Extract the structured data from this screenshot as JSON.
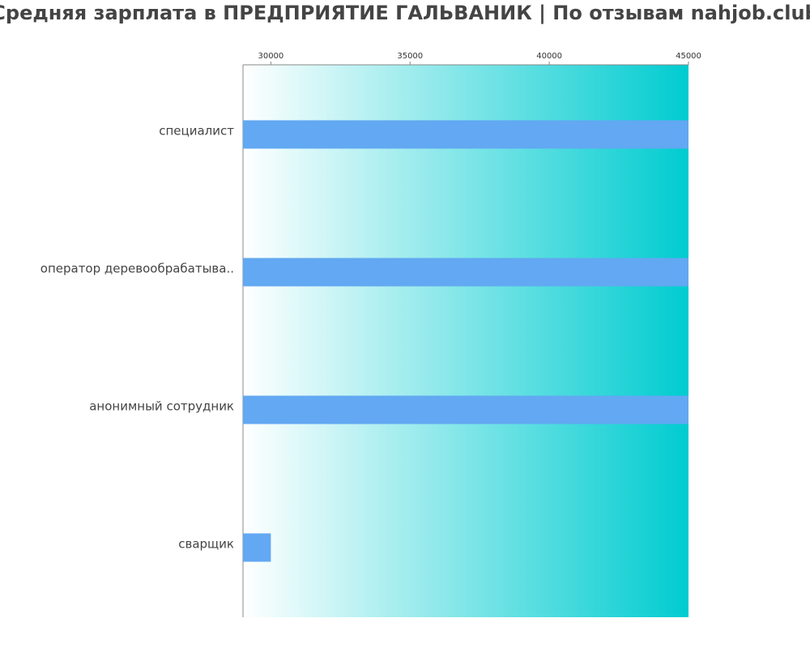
{
  "chart_data": {
    "type": "bar",
    "orientation": "horizontal",
    "title": "Средняя зарплата в ПРЕДПРИЯТИЕ ГАЛЬВАНИК | По отзывам nahjob.club",
    "xlabel": "",
    "ylabel": "",
    "xlim": [
      29000,
      45000
    ],
    "x_ticks": [
      "30000",
      "35000",
      "40000",
      "45000"
    ],
    "x_tick_values": [
      30000,
      35000,
      40000,
      45000
    ],
    "x_axis_position": "top",
    "grid": false,
    "legend": "none",
    "categories": [
      "специалист",
      "оператор деревообрабатыва..",
      "анонимный сотрудник",
      "сварщик"
    ],
    "values": [
      45000,
      45000,
      45000,
      30000
    ]
  },
  "colors": {
    "bar": "#62a8f2",
    "background_gradient_start": "#ffffff",
    "background_gradient_end": "#00ccd0",
    "axis": "#888888",
    "title": "#444444",
    "label": "#444444"
  }
}
